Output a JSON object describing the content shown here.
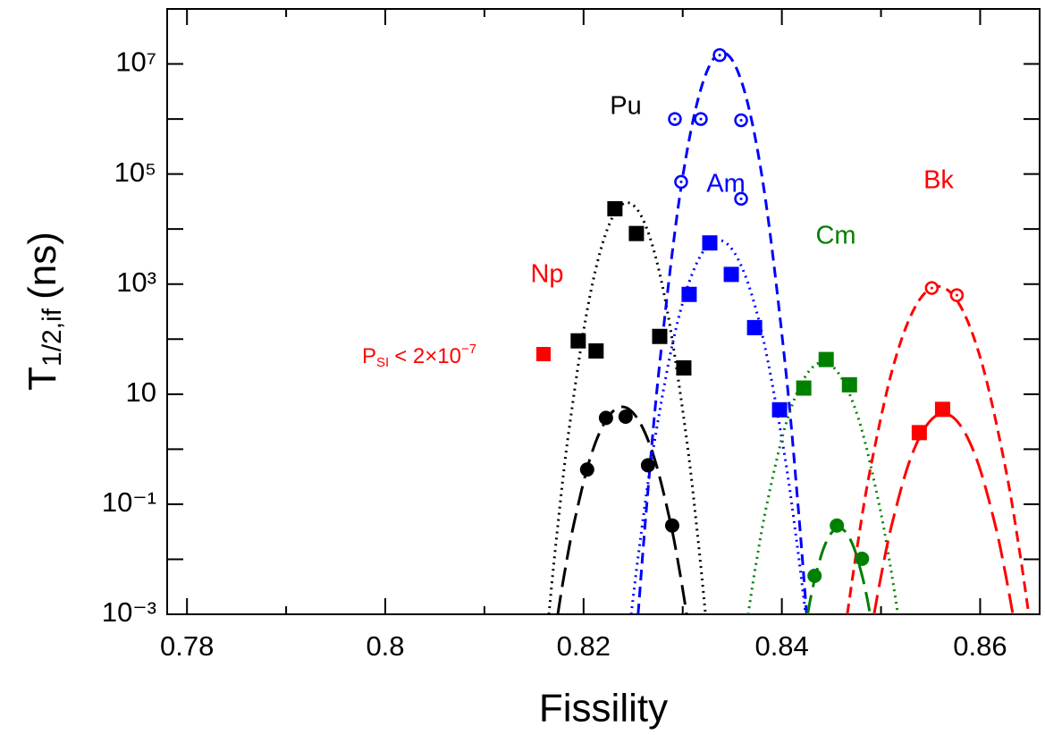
{
  "chart_data": {
    "type": "scatter",
    "xlabel": "Fissility",
    "ylabel": {
      "main": "T",
      "sub": "1/2,if",
      "unit": "(ns)"
    },
    "xlim": [
      0.778,
      0.866
    ],
    "xticks": [
      0.78,
      0.8,
      0.82,
      0.84,
      0.86
    ],
    "x_minor_ticks": [
      0.79,
      0.81,
      0.83,
      0.85
    ],
    "ylim": [
      0.001,
      100000000
    ],
    "log_y": true,
    "yticks": [
      {
        "value": 0.001,
        "label": "10⁻³"
      },
      {
        "value": 0.1,
        "label": "10⁻¹"
      },
      10,
      {
        "value": 1000,
        "label": "10³"
      },
      {
        "value": 100000,
        "label": "10⁵"
      },
      {
        "value": 10000000,
        "label": "10⁷"
      }
    ],
    "y_minor_ticks": [
      0.01,
      1,
      100,
      10000,
      1000000
    ],
    "series": [
      {
        "color": "#000000",
        "marker": "square",
        "x": [
          0.82316,
          0.82533,
          0.81946,
          0.82126,
          0.82768,
          0.83011
        ],
        "values": [
          23400,
          8300,
          93,
          61,
          112,
          30
        ]
      },
      {
        "color": "#000000",
        "marker": "circle",
        "x": [
          0.82036,
          0.82226,
          0.82424,
          0.8265,
          0.82894
        ],
        "values": [
          0.427,
          3.7,
          3.9,
          0.51,
          0.041
        ]
      },
      {
        "color": "#0000ff",
        "marker": "open-circle",
        "x": [
          0.83373,
          0.82921,
          0.83183,
          0.83589,
          0.82984,
          0.83589
        ],
        "values": [
          14500000,
          1000000,
          1000000,
          950000,
          72000,
          35500
        ]
      },
      {
        "color": "#0000ff",
        "marker": "square",
        "x": [
          0.83273,
          0.83065,
          0.8349,
          0.83725,
          0.83977
        ],
        "values": [
          5600,
          650,
          1500,
          162,
          5.2
        ]
      },
      {
        "color": "#008000",
        "marker": "square",
        "x": [
          0.84221,
          0.84447,
          0.84682
        ],
        "values": [
          12.9,
          42.6,
          14.8
        ]
      },
      {
        "color": "#008000",
        "marker": "circle",
        "x": [
          0.8433,
          0.84555,
          0.84808
        ],
        "values": [
          0.005,
          0.041,
          0.0102
        ]
      },
      {
        "color": "#ff0000",
        "marker": "open-circle",
        "x": [
          0.85512,
          0.85765
        ],
        "values": [
          850,
          630
        ]
      },
      {
        "color": "#ff0000",
        "marker": "square",
        "x": [
          0.85386,
          0.85621
        ],
        "values": [
          2.0,
          5.3
        ]
      }
    ],
    "curves": [
      {
        "color": "#000000",
        "dash": "dotted",
        "x": [
          0.8165,
          0.81729,
          0.81847,
          0.82045,
          0.82242,
          0.8244,
          0.82638,
          0.82835,
          0.83033,
          0.83151,
          0.8323
        ],
        "values": [
          0.001,
          0.0263,
          1.86,
          407,
          10200,
          30200,
          10200,
          407,
          1.86,
          0.0263,
          0.001
        ]
      },
      {
        "color": "#000000",
        "dash": "long-dashed",
        "x": [
          0.8174,
          0.81805,
          0.81903,
          0.82065,
          0.82228,
          0.8239,
          0.82553,
          0.82715,
          0.82878,
          0.82975,
          0.8304
        ],
        "values": [
          0.001,
          0.00525,
          0.0447,
          0.676,
          3.39,
          5.89,
          3.39,
          0.676,
          0.0447,
          0.00525,
          0.001
        ]
      },
      {
        "color": "#0000ff",
        "dash": "dashed",
        "x": [
          0.8255,
          0.82635,
          0.827625,
          0.82975,
          0.831875,
          0.834,
          0.836125,
          0.83825,
          0.840375,
          0.84165,
          0.8425
        ],
        "values": [
          0.001,
          0.0871,
          29.5,
          45700,
          3720000,
          16200000,
          3720000,
          45700,
          29.5,
          0.0871,
          0.001
        ]
      },
      {
        "color": "#0000ff",
        "dash": "dotted",
        "x": [
          0.8248,
          0.82568,
          0.827,
          0.8292,
          0.8314,
          0.8336,
          0.8358,
          0.838,
          0.8402,
          0.84152,
          0.8424
        ],
        "values": [
          0.001,
          0.0195,
          0.944,
          126,
          2370,
          6310,
          2370,
          126,
          0.944,
          0.0195,
          0.001
        ]
      },
      {
        "color": "#008000",
        "dash": "dotted",
        "x": [
          0.8366,
          0.83735,
          0.83849,
          0.84037,
          0.84226,
          0.84415,
          0.84604,
          0.84793,
          0.84981,
          0.85095,
          0.8517
        ],
        "values": [
          0.001,
          0.00741,
          0.1,
          2.72,
          19.5,
          38.0,
          19.5,
          2.72,
          0.1,
          0.00741,
          0.001
        ]
      },
      {
        "color": "#008000",
        "dash": "long-dashed",
        "x": [
          0.8426,
          0.84291,
          0.84339,
          0.84417,
          0.84496,
          0.84575,
          0.84654,
          0.84733,
          0.84811,
          0.84859,
          0.8489
        ],
        "values": [
          0.001,
          0.002,
          0.0049,
          0.0151,
          0.0295,
          0.0372,
          0.0295,
          0.0151,
          0.0049,
          0.002,
          0.001
        ]
      },
      {
        "color": "#ff0000",
        "dash": "dashed",
        "x": [
          0.8466,
          0.84752,
          0.84889,
          0.85118,
          0.85346,
          0.85575,
          0.85804,
          0.86032,
          0.86261,
          0.86399,
          0.8649
        ],
        "values": [
          0.001,
          0.0135,
          0.407,
          29.5,
          389,
          912,
          389,
          29.5,
          0.407,
          0.0135,
          0.001
        ]
      },
      {
        "color": "#ff0000",
        "dash": "long-dashed",
        "x": [
          0.8493,
          0.85,
          0.85105,
          0.8528,
          0.85455,
          0.8563,
          0.85805,
          0.8598,
          0.86155,
          0.8626,
          0.8633
        ],
        "values": [
          0.001,
          0.0049,
          0.0398,
          0.55,
          2.63,
          4.47,
          2.63,
          0.55,
          0.0398,
          0.0049,
          0.001
        ]
      }
    ],
    "annotations": [
      {
        "text": "Pu",
        "color": "#000000"
      },
      {
        "text": "Am",
        "color": "#0000ff"
      },
      {
        "text": "Np",
        "color": "#ff0000"
      },
      {
        "text": "Cm",
        "color": "#008000"
      },
      {
        "text": "Bk",
        "color": "#ff0000"
      }
    ],
    "limit_note": {
      "parts": [
        "P",
        "SI",
        "< 2×10",
        "−7"
      ],
      "color": "#ff0000"
    }
  }
}
